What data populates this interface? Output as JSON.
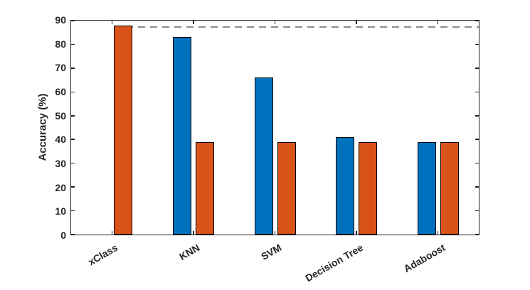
{
  "chart_data": {
    "type": "bar",
    "title": "",
    "xlabel": "",
    "ylabel": "Accuracy (%)",
    "categories": [
      "xClass",
      "KNN",
      "SVM",
      "Decision Tree",
      "Adaboost"
    ],
    "series": [
      {
        "name": "series-blue",
        "color": "#0072BD",
        "values": [
          0,
          83,
          66,
          41,
          39
        ]
      },
      {
        "name": "series-orange",
        "color": "#D95319",
        "values": [
          88,
          39,
          39,
          39,
          39
        ]
      }
    ],
    "reference_line": {
      "value": 87.3,
      "style": "dashed",
      "color": "#8C8C8C",
      "starts_at_category": "xClass"
    },
    "ylim": [
      0,
      90
    ],
    "yticks": [
      0,
      10,
      20,
      30,
      40,
      50,
      60,
      70,
      80,
      90
    ],
    "x_tick_rotation_deg": 30,
    "grid": false,
    "legend_visible": false,
    "axis_color": "#212121",
    "tick_label_color": "#262626",
    "background_color": "#ffffff"
  }
}
